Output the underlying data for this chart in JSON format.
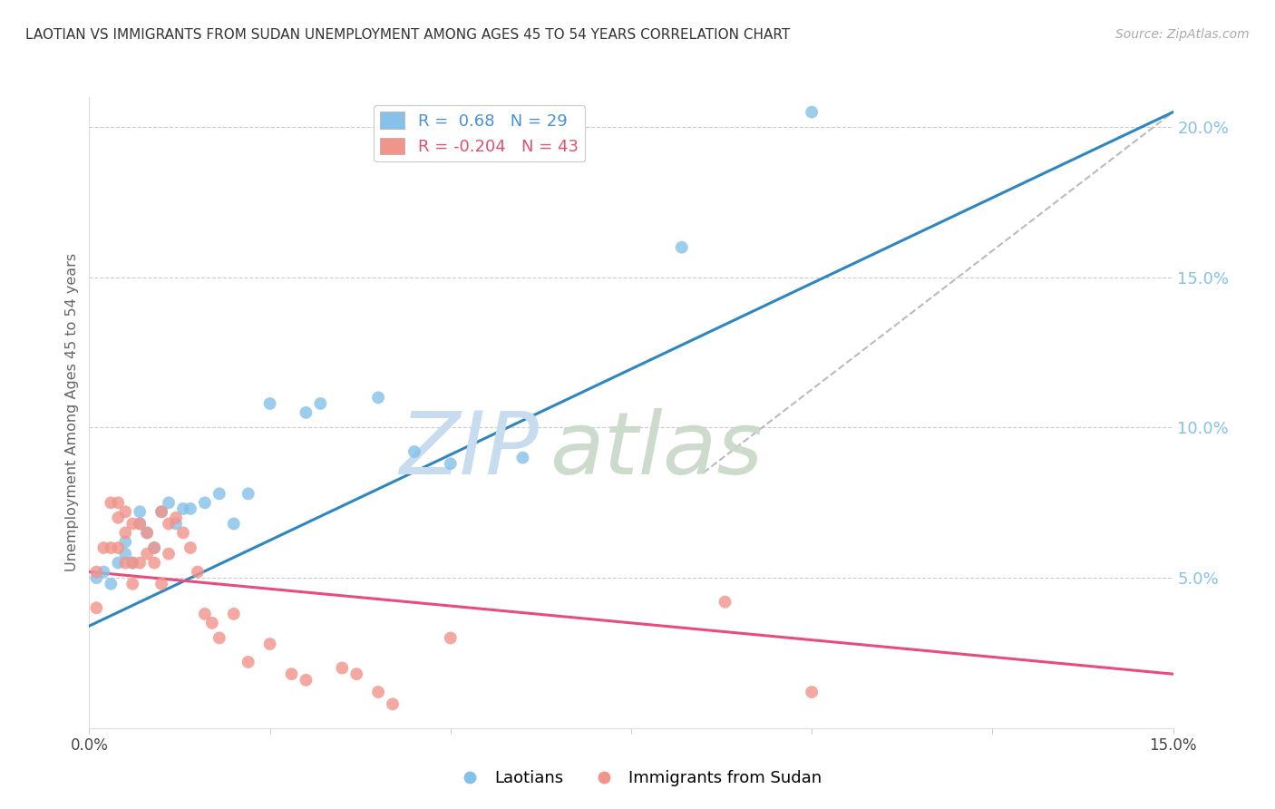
{
  "title": "LAOTIAN VS IMMIGRANTS FROM SUDAN UNEMPLOYMENT AMONG AGES 45 TO 54 YEARS CORRELATION CHART",
  "source": "Source: ZipAtlas.com",
  "ylabel": "Unemployment Among Ages 45 to 54 years",
  "xlim": [
    0.0,
    0.15
  ],
  "ylim": [
    0.0,
    0.21
  ],
  "xticks": [
    0.0,
    0.025,
    0.05,
    0.075,
    0.1,
    0.125,
    0.15
  ],
  "xtick_labels": [
    "0.0%",
    "",
    "",
    "",
    "",
    "",
    "15.0%"
  ],
  "ytick_right": [
    0.05,
    0.1,
    0.15,
    0.2
  ],
  "ytick_right_labels": [
    "5.0%",
    "10.0%",
    "15.0%",
    "20.0%"
  ],
  "blue_R": 0.68,
  "blue_N": 29,
  "pink_R": -0.204,
  "pink_N": 43,
  "blue_color": "#85C1E9",
  "pink_color": "#F1948A",
  "blue_line_color": "#2E86C1",
  "pink_line_color": "#E74C7C",
  "gray_line_color": "#BBBBBB",
  "blue_scatter_x": [
    0.001,
    0.002,
    0.003,
    0.004,
    0.005,
    0.005,
    0.006,
    0.007,
    0.007,
    0.008,
    0.009,
    0.01,
    0.011,
    0.012,
    0.013,
    0.014,
    0.016,
    0.018,
    0.02,
    0.022,
    0.025,
    0.03,
    0.032,
    0.04,
    0.045,
    0.05,
    0.06,
    0.082,
    0.1
  ],
  "blue_scatter_y": [
    0.05,
    0.052,
    0.048,
    0.055,
    0.058,
    0.062,
    0.055,
    0.068,
    0.072,
    0.065,
    0.06,
    0.072,
    0.075,
    0.068,
    0.073,
    0.073,
    0.075,
    0.078,
    0.068,
    0.078,
    0.108,
    0.105,
    0.108,
    0.11,
    0.092,
    0.088,
    0.09,
    0.16,
    0.205
  ],
  "pink_scatter_x": [
    0.001,
    0.001,
    0.002,
    0.003,
    0.003,
    0.004,
    0.004,
    0.004,
    0.005,
    0.005,
    0.005,
    0.006,
    0.006,
    0.006,
    0.007,
    0.007,
    0.008,
    0.008,
    0.009,
    0.009,
    0.01,
    0.01,
    0.011,
    0.011,
    0.012,
    0.013,
    0.014,
    0.015,
    0.016,
    0.017,
    0.018,
    0.02,
    0.022,
    0.025,
    0.028,
    0.03,
    0.035,
    0.037,
    0.04,
    0.042,
    0.05,
    0.088,
    0.1
  ],
  "pink_scatter_y": [
    0.052,
    0.04,
    0.06,
    0.06,
    0.075,
    0.06,
    0.075,
    0.07,
    0.065,
    0.072,
    0.055,
    0.068,
    0.055,
    0.048,
    0.068,
    0.055,
    0.065,
    0.058,
    0.06,
    0.055,
    0.072,
    0.048,
    0.068,
    0.058,
    0.07,
    0.065,
    0.06,
    0.052,
    0.038,
    0.035,
    0.03,
    0.038,
    0.022,
    0.028,
    0.018,
    0.016,
    0.02,
    0.018,
    0.012,
    0.008,
    0.03,
    0.042,
    0.012
  ],
  "blue_trendline_x": [
    0.0,
    0.15
  ],
  "blue_trendline_y": [
    0.034,
    0.205
  ],
  "pink_trendline_x": [
    0.0,
    0.15
  ],
  "pink_trendline_y": [
    0.052,
    0.018
  ],
  "gray_trendline_x": [
    0.085,
    0.15
  ],
  "gray_trendline_y": [
    0.085,
    0.205
  ],
  "background_color": "#FFFFFF",
  "grid_color": "#CCCCCC"
}
